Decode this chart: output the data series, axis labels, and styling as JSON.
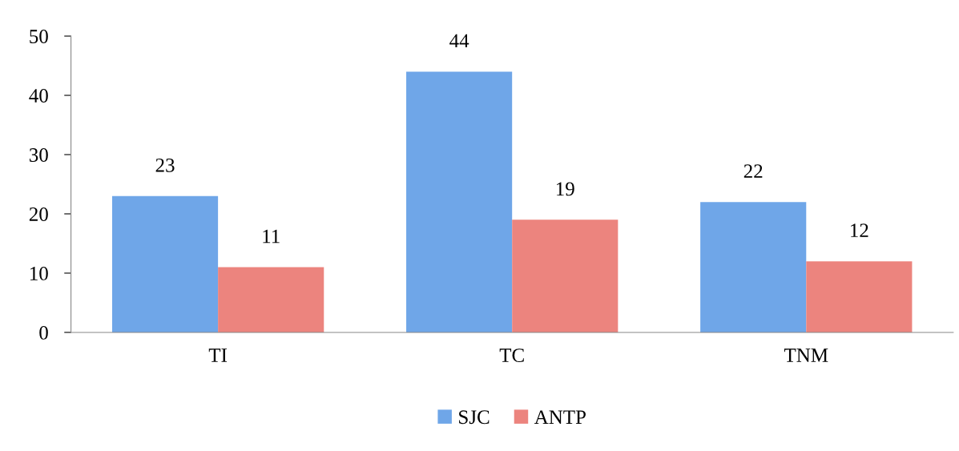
{
  "chart_data": {
    "type": "bar",
    "categories": [
      "TI",
      "TC",
      "TNM"
    ],
    "series": [
      {
        "name": "SJC",
        "color": "#6fa6e8",
        "values": [
          23,
          44,
          22
        ]
      },
      {
        "name": "ANTP",
        "color": "#ec847e",
        "values": [
          11,
          19,
          12
        ]
      }
    ],
    "ylim": [
      0,
      50
    ],
    "yticks": [
      0,
      10,
      20,
      30,
      40,
      50
    ],
    "data_labels": true,
    "grid": false,
    "legend": "bottom"
  }
}
